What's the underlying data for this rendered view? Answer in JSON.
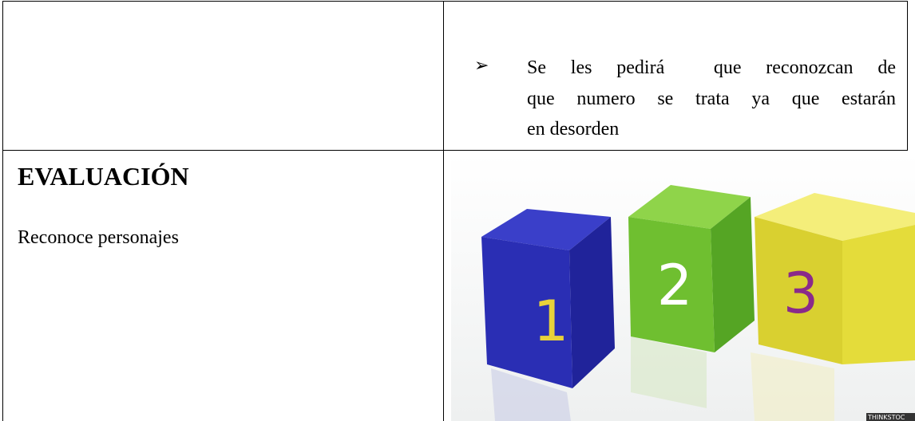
{
  "table": {
    "rows": [
      {
        "left": null,
        "right": {
          "bullet_lines": [
            "Se les pedirá  que reconozcan de",
            "que numero se trata ya que estarán",
            "en desorden"
          ]
        }
      },
      {
        "left": {
          "heading": "EVALUACIÓN",
          "text": "Reconoce personajes"
        },
        "right": {
          "image": {
            "cube_labels": [
              "1",
              "2",
              "3"
            ],
            "watermark": "THINKSTOC"
          }
        }
      }
    ]
  }
}
